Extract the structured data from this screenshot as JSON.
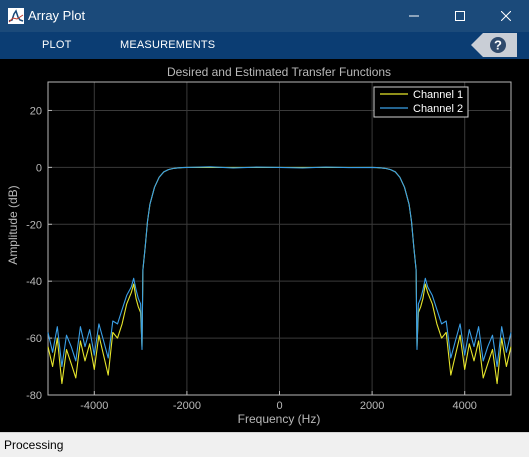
{
  "window": {
    "title": "Array Plot"
  },
  "icons": {
    "app": "matlab-array-plot-icon",
    "minimize": "minimize-icon",
    "maximize": "maximize-icon",
    "close": "close-icon",
    "help": "help-icon"
  },
  "toolstrip": {
    "tabs": [
      {
        "label": "PLOT"
      },
      {
        "label": "MEASUREMENTS"
      }
    ]
  },
  "status": {
    "text": "Processing"
  },
  "colors": {
    "titlebar": "#1b4a7a",
    "toolstrip": "#0b3d73",
    "plot_background": "#000000",
    "axes_foreground": "#b9b9b9",
    "channel1": "#e5e52b",
    "channel2": "#3a9fe6"
  },
  "chart_data": {
    "type": "line",
    "title": "Desired and Estimated Transfer Functions",
    "xlabel": "Frequency (Hz)",
    "ylabel": "Amplitude (dB)",
    "xlim": [
      -5000,
      5000
    ],
    "ylim": [
      -80,
      30
    ],
    "xticks": [
      -4000,
      -2000,
      0,
      2000,
      4000
    ],
    "yticks": [
      20,
      0,
      -20,
      -40,
      -60,
      -80
    ],
    "grid": true,
    "legend_position": "top-right",
    "series": [
      {
        "name": "Channel 1",
        "color": "#e5e52b",
        "x": [
          -5000,
          -4900,
          -4800,
          -4700,
          -4600,
          -4500,
          -4400,
          -4300,
          -4200,
          -4100,
          -4000,
          -3900,
          -3800,
          -3700,
          -3600,
          -3500,
          -3400,
          -3300,
          -3200,
          -3150,
          -3100,
          -3050,
          -3000,
          -2970,
          -2950,
          -2900,
          -2850,
          -2800,
          -2700,
          -2600,
          -2500,
          -2400,
          -2300,
          -2200,
          -2100,
          -2000,
          -1500,
          -1000,
          -500,
          0,
          500,
          1000,
          1500,
          2000,
          2100,
          2200,
          2300,
          2400,
          2500,
          2600,
          2700,
          2800,
          2850,
          2900,
          2950,
          2970,
          3000,
          3050,
          3100,
          3150,
          3200,
          3300,
          3400,
          3500,
          3600,
          3700,
          3800,
          3900,
          4000,
          4100,
          4200,
          4300,
          4400,
          4500,
          4600,
          4700,
          4800,
          4900,
          5000
        ],
        "y": [
          -63,
          -70,
          -60,
          -76,
          -64,
          -69,
          -74,
          -61,
          -68,
          -62,
          -71,
          -59,
          -66,
          -73,
          -58,
          -60,
          -55,
          -48,
          -44,
          -41,
          -46,
          -49,
          -51,
          -63,
          -36,
          -28,
          -19,
          -13,
          -7,
          -3.5,
          -1.6,
          -0.8,
          -0.4,
          -0.2,
          -0.1,
          0,
          0,
          0,
          0,
          0,
          0,
          0,
          0,
          0,
          -0.1,
          -0.2,
          -0.4,
          -0.8,
          -1.6,
          -3.5,
          -7,
          -13,
          -19,
          -28,
          -36,
          -63,
          -51,
          -49,
          -46,
          -41,
          -44,
          -48,
          -55,
          -60,
          -58,
          -73,
          -66,
          -59,
          -71,
          -62,
          -68,
          -61,
          -74,
          -69,
          -64,
          -76,
          -60,
          -70,
          -63
        ]
      },
      {
        "name": "Channel 2",
        "color": "#3a9fe6",
        "x": [
          -5000,
          -4900,
          -4800,
          -4700,
          -4600,
          -4500,
          -4400,
          -4300,
          -4200,
          -4100,
          -4000,
          -3900,
          -3800,
          -3700,
          -3600,
          -3500,
          -3400,
          -3300,
          -3200,
          -3150,
          -3100,
          -3050,
          -3000,
          -2970,
          -2950,
          -2900,
          -2850,
          -2800,
          -2700,
          -2600,
          -2500,
          -2400,
          -2300,
          -2200,
          -2100,
          -2000,
          -1500,
          -1000,
          -500,
          0,
          500,
          1000,
          1500,
          2000,
          2100,
          2200,
          2300,
          2400,
          2500,
          2600,
          2700,
          2800,
          2850,
          2900,
          2950,
          2970,
          3000,
          3050,
          3100,
          3150,
          3200,
          3300,
          3400,
          3500,
          3600,
          3700,
          3800,
          3900,
          4000,
          4100,
          4200,
          4300,
          4400,
          4500,
          4600,
          4700,
          4800,
          4900,
          5000
        ],
        "y": [
          -58,
          -65,
          -56,
          -70,
          -59,
          -63,
          -68,
          -56,
          -63,
          -57,
          -66,
          -55,
          -61,
          -67,
          -54,
          -55,
          -50,
          -45,
          -42,
          -39,
          -43,
          -46,
          -48,
          -64,
          -36,
          -28,
          -19,
          -13,
          -7,
          -3.5,
          -1.6,
          -0.8,
          -0.4,
          -0.2,
          -0.1,
          0,
          0.2,
          -0.2,
          0.1,
          0,
          -0.2,
          0.1,
          -0.1,
          0,
          -0.1,
          -0.2,
          -0.4,
          -0.8,
          -1.6,
          -3.5,
          -7,
          -13,
          -19,
          -28,
          -36,
          -64,
          -48,
          -46,
          -43,
          -39,
          -42,
          -45,
          -50,
          -55,
          -54,
          -67,
          -61,
          -55,
          -66,
          -57,
          -63,
          -56,
          -68,
          -63,
          -59,
          -70,
          -56,
          -65,
          -58
        ]
      }
    ]
  }
}
